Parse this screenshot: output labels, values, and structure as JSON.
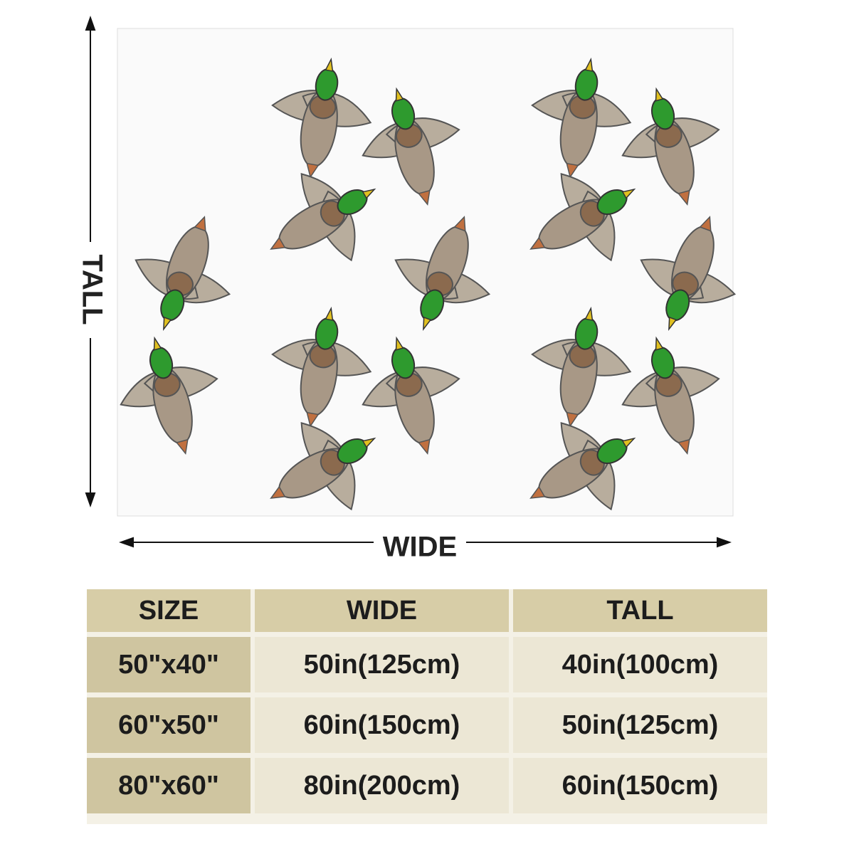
{
  "labels": {
    "tall": "TALL",
    "wide": "WIDE"
  },
  "table": {
    "header": [
      "SIZE",
      "WIDE",
      "TALL"
    ],
    "rows": [
      [
        "50\"x40\"",
        "50in(125cm)",
        "40in(100cm)"
      ],
      [
        "60\"x50\"",
        "60in(150cm)",
        "50in(125cm)"
      ],
      [
        "80\"x60\"",
        "80in(200cm)",
        "60in(150cm)"
      ]
    ]
  }
}
